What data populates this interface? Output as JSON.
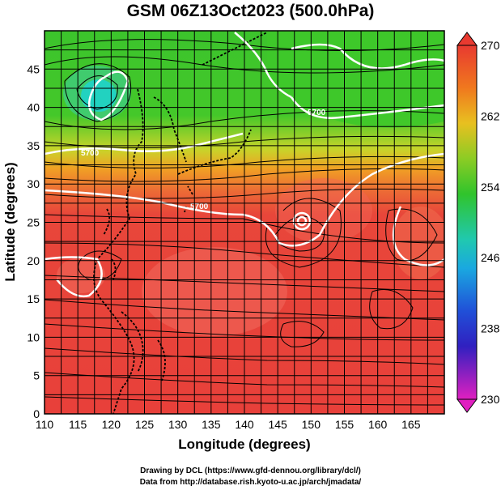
{
  "title": "GSM 06Z13Oct2023 (500.0hPa)",
  "xlabel": "Longitude (degrees)",
  "ylabel": "Latitude  (degrees)",
  "x_ticks": [
    "110",
    "115",
    "120",
    "125",
    "130",
    "135",
    "140",
    "145",
    "150",
    "155",
    "160",
    "165"
  ],
  "y_ticks": [
    "0",
    "5",
    "10",
    "15",
    "20",
    "25",
    "30",
    "35",
    "40",
    "45"
  ],
  "colorbar_ticks": [
    "270",
    "262",
    "254",
    "246",
    "238",
    "230"
  ],
  "contour_label": "5700",
  "credits": [
    "Drawing by DCL (https://www.gfd-dennou.org/library/dcl/)",
    "Data from http://database.rish.kyoto-u.ac.jp/arch/jmadata/"
  ],
  "colors": {
    "warm": "#e8433a",
    "warm_light": "#f26a5a",
    "orange": "#f4a020",
    "yellow": "#d8d42a",
    "green": "#36c42a",
    "cyan": "#20d0c0",
    "blue": "#2040d0",
    "magenta": "#e020c0",
    "contour": "#ffffff",
    "streamline": "#000000"
  },
  "chart_data": {
    "type": "heatmap",
    "title": "GSM 06Z13Oct2023 (500.0hPa)",
    "xlabel": "Longitude (degrees)",
    "ylabel": "Latitude  (degrees)",
    "xlim": [
      110,
      170
    ],
    "ylim": [
      0,
      50
    ],
    "colorbar_range": [
      230,
      270
    ],
    "colorbar_ticks": [
      230,
      238,
      246,
      254,
      262,
      270
    ],
    "contour_value": 5700,
    "features": {
      "typhoon_center": {
        "lon": 148,
        "lat": 27.5
      },
      "cold_low_center": {
        "lon": 118,
        "lat": 43
      }
    },
    "grid": true
  }
}
